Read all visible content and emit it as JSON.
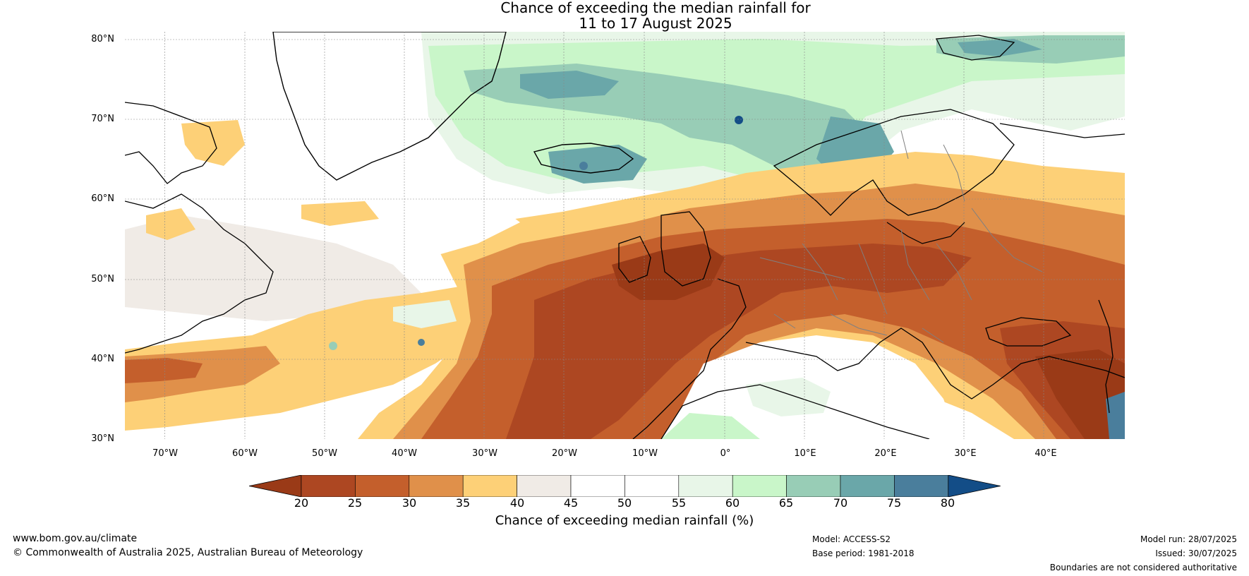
{
  "title": {
    "line1": "Chance of exceeding the median rainfall for",
    "line2": "11 to 17 August 2025"
  },
  "map": {
    "lat_labels": [
      "80°N",
      "70°N",
      "60°N",
      "50°N",
      "40°N",
      "30°N"
    ],
    "lon_labels": [
      "70°W",
      "60°W",
      "50°W",
      "40°W",
      "30°W",
      "20°W",
      "10°W",
      "0°",
      "10°E",
      "20°E",
      "30°E",
      "40°E"
    ],
    "lat_range": [
      30,
      81
    ],
    "lon_range": [
      -75,
      50
    ]
  },
  "colorbar": {
    "ticks": [
      "20",
      "25",
      "30",
      "35",
      "40",
      "45",
      "50",
      "55",
      "60",
      "65",
      "70",
      "75",
      "80"
    ],
    "colors": {
      "below_20": "#9a3a17",
      "20_25": "#ad4722",
      "25_30": "#c45f2c",
      "30_35": "#e0904a",
      "35_40": "#fdd077",
      "40_45": "#f0ebe6",
      "45_50": "#ffffff",
      "50_55": "#ffffff",
      "55_60": "#e8f6e8",
      "60_65": "#c9f6c9",
      "65_70": "#98cdb6",
      "70_75": "#6aa7a9",
      "75_80": "#4a7e9c",
      "above_80": "#134d87"
    },
    "label": "Chance of exceeding median rainfall (%)"
  },
  "footer": {
    "website": "www.bom.gov.au/climate",
    "copyright": "© Commonwealth of Australia 2025, Australian Bureau of Meteorology",
    "model": "Model: ACCESS-S2",
    "base_period": "Base period: 1981-2018",
    "model_run": "Model run: 28/07/2025",
    "issued": "Issued: 30/07/2025",
    "disclaimer": "Boundaries are not considered authoritative"
  }
}
